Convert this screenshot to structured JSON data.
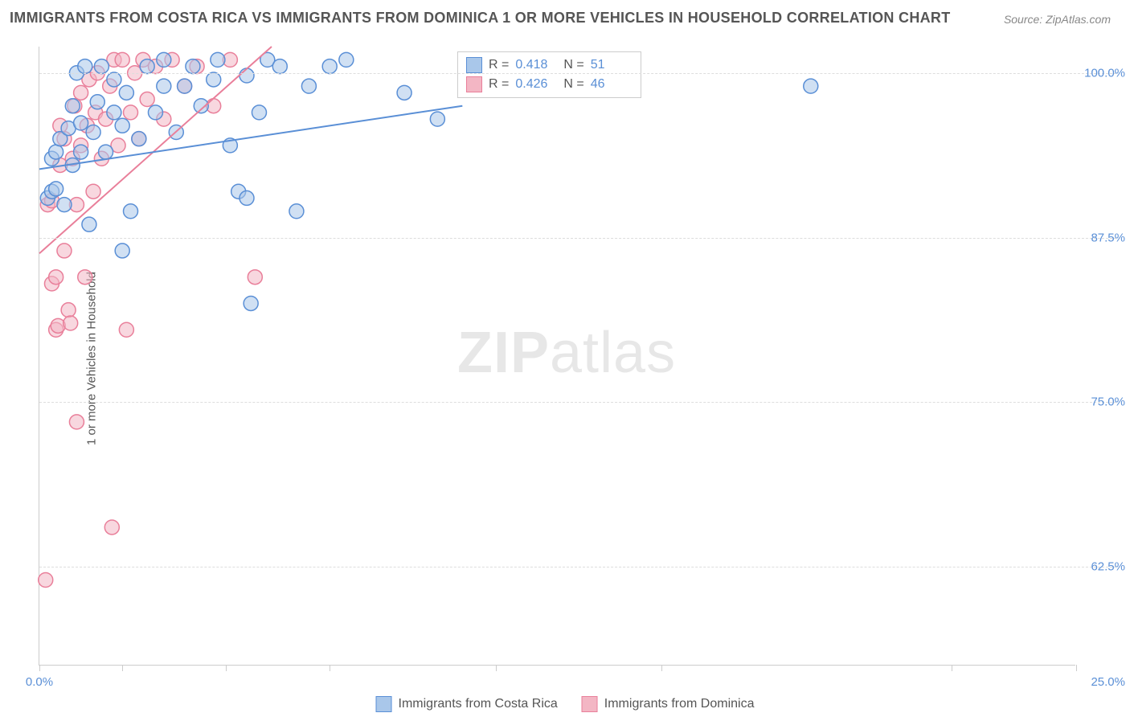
{
  "title": "IMMIGRANTS FROM COSTA RICA VS IMMIGRANTS FROM DOMINICA 1 OR MORE VEHICLES IN HOUSEHOLD CORRELATION CHART",
  "source": "Source: ZipAtlas.com",
  "ylabel": "1 or more Vehicles in Household",
  "watermark_a": "ZIP",
  "watermark_b": "atlas",
  "chart": {
    "type": "scatter",
    "x_domain": [
      0,
      25
    ],
    "y_domain": [
      55,
      102
    ],
    "background_color": "#ffffff",
    "grid_color": "#dddddd",
    "axis_color": "#cccccc",
    "tick_color": "#5a8fd6",
    "label_color": "#555555",
    "title_fontsize": 18,
    "label_fontsize": 15,
    "marker_radius": 9,
    "marker_stroke_width": 1.5,
    "trend_line_width": 2,
    "y_ticks": [
      {
        "v": 100.0,
        "label": "100.0%"
      },
      {
        "v": 87.5,
        "label": "87.5%"
      },
      {
        "v": 75.0,
        "label": "75.0%"
      },
      {
        "v": 62.5,
        "label": "62.5%"
      }
    ],
    "x_ticks": [
      {
        "v": 0.0,
        "label": "0.0%"
      },
      {
        "v": 2.0,
        "label": ""
      },
      {
        "v": 4.5,
        "label": ""
      },
      {
        "v": 7.0,
        "label": ""
      },
      {
        "v": 11.0,
        "label": ""
      },
      {
        "v": 15.0,
        "label": ""
      },
      {
        "v": 22.0,
        "label": ""
      },
      {
        "v": 25.0,
        "label": "25.0%"
      }
    ],
    "series": [
      {
        "name": "Immigrants from Costa Rica",
        "fill": "#a9c7ea",
        "stroke": "#5a8fd6",
        "fill_opacity": 0.55,
        "R": "0.418",
        "N": "51",
        "trend": {
          "x1": 0,
          "y1": 92.7,
          "x2": 10.2,
          "y2": 97.5
        },
        "points": [
          [
            0.2,
            90.5
          ],
          [
            0.3,
            91.0
          ],
          [
            0.3,
            93.5
          ],
          [
            0.4,
            91.2
          ],
          [
            0.4,
            94.0
          ],
          [
            0.5,
            95.0
          ],
          [
            0.6,
            90.0
          ],
          [
            0.7,
            95.8
          ],
          [
            0.8,
            93.0
          ],
          [
            0.8,
            97.5
          ],
          [
            0.9,
            100.0
          ],
          [
            1.0,
            94.0
          ],
          [
            1.0,
            96.2
          ],
          [
            1.1,
            100.5
          ],
          [
            1.2,
            88.5
          ],
          [
            1.3,
            95.5
          ],
          [
            1.4,
            97.8
          ],
          [
            1.5,
            100.5
          ],
          [
            1.6,
            94.0
          ],
          [
            1.8,
            97.0
          ],
          [
            1.8,
            99.5
          ],
          [
            2.0,
            86.5
          ],
          [
            2.0,
            96.0
          ],
          [
            2.1,
            98.5
          ],
          [
            2.2,
            89.5
          ],
          [
            2.4,
            95.0
          ],
          [
            2.6,
            100.5
          ],
          [
            2.8,
            97.0
          ],
          [
            3.0,
            99.0
          ],
          [
            3.0,
            101.0
          ],
          [
            3.3,
            95.5
          ],
          [
            3.5,
            99.0
          ],
          [
            3.7,
            100.5
          ],
          [
            3.9,
            97.5
          ],
          [
            4.2,
            99.5
          ],
          [
            4.3,
            101.0
          ],
          [
            4.6,
            94.5
          ],
          [
            4.8,
            91.0
          ],
          [
            5.0,
            90.5
          ],
          [
            5.0,
            99.8
          ],
          [
            5.3,
            97.0
          ],
          [
            5.5,
            101.0
          ],
          [
            5.1,
            82.5
          ],
          [
            5.8,
            100.5
          ],
          [
            6.2,
            89.5
          ],
          [
            6.5,
            99.0
          ],
          [
            7.0,
            100.5
          ],
          [
            7.4,
            101.0
          ],
          [
            8.8,
            98.5
          ],
          [
            9.6,
            96.5
          ],
          [
            18.6,
            99.0
          ]
        ]
      },
      {
        "name": "Immigrants from Dominica",
        "fill": "#f3b6c4",
        "stroke": "#e97f9a",
        "fill_opacity": 0.55,
        "R": "0.426",
        "N": "46",
        "trend": {
          "x1": 0,
          "y1": 86.3,
          "x2": 5.6,
          "y2": 102.0
        },
        "points": [
          [
            0.15,
            61.5
          ],
          [
            0.2,
            90.0
          ],
          [
            0.3,
            90.3
          ],
          [
            0.3,
            84.0
          ],
          [
            0.4,
            84.5
          ],
          [
            0.4,
            80.5
          ],
          [
            0.45,
            80.8
          ],
          [
            0.5,
            93.0
          ],
          [
            0.5,
            96.0
          ],
          [
            0.6,
            86.5
          ],
          [
            0.6,
            95.0
          ],
          [
            0.7,
            82.0
          ],
          [
            0.75,
            81.0
          ],
          [
            0.8,
            93.5
          ],
          [
            0.85,
            97.5
          ],
          [
            0.9,
            73.5
          ],
          [
            0.9,
            90.0
          ],
          [
            1.0,
            94.5
          ],
          [
            1.0,
            98.5
          ],
          [
            1.1,
            84.5
          ],
          [
            1.15,
            96.0
          ],
          [
            1.2,
            99.5
          ],
          [
            1.3,
            91.0
          ],
          [
            1.35,
            97.0
          ],
          [
            1.4,
            100.0
          ],
          [
            1.5,
            93.5
          ],
          [
            1.6,
            96.5
          ],
          [
            1.7,
            99.0
          ],
          [
            1.75,
            65.5
          ],
          [
            1.8,
            101.0
          ],
          [
            1.9,
            94.5
          ],
          [
            2.0,
            101.0
          ],
          [
            2.1,
            80.5
          ],
          [
            2.2,
            97.0
          ],
          [
            2.3,
            100.0
          ],
          [
            2.4,
            95.0
          ],
          [
            2.5,
            101.0
          ],
          [
            2.6,
            98.0
          ],
          [
            2.8,
            100.5
          ],
          [
            3.0,
            96.5
          ],
          [
            3.2,
            101.0
          ],
          [
            3.5,
            99.0
          ],
          [
            3.8,
            100.5
          ],
          [
            4.2,
            97.5
          ],
          [
            4.6,
            101.0
          ],
          [
            5.2,
            84.5
          ]
        ]
      }
    ]
  },
  "legend_top": {
    "rlabel": "R =",
    "nlabel": "N ="
  },
  "legend_bottom_labels": [
    "Immigrants from Costa Rica",
    "Immigrants from Dominica"
  ]
}
